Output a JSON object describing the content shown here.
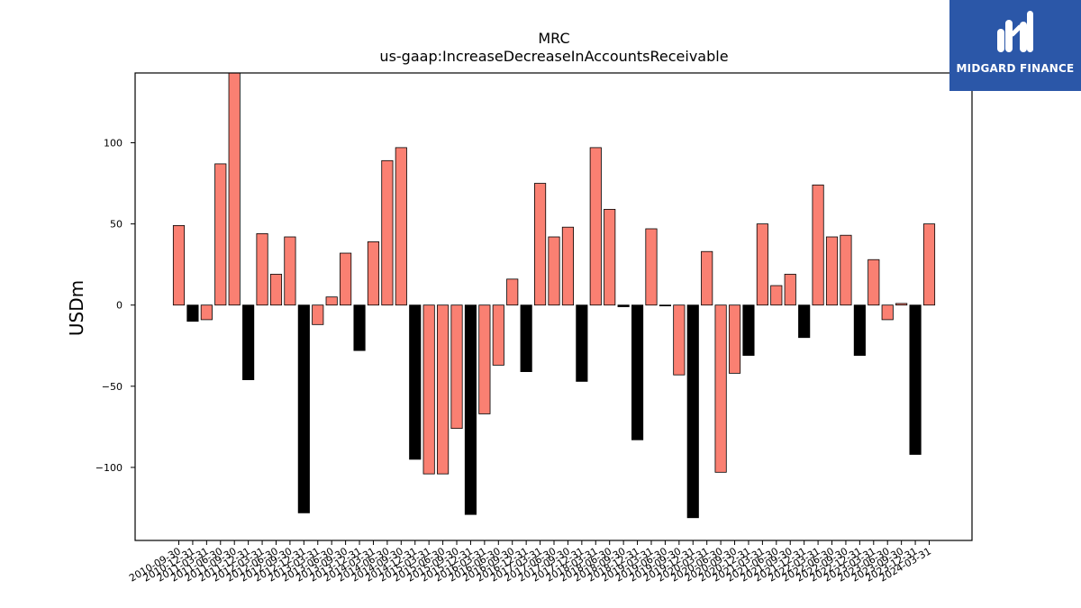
{
  "chart_data": {
    "type": "bar",
    "title": "MRC",
    "subtitle": "us-gaap:IncreaseDecreaseInAccountsReceivable",
    "xlabel": "",
    "ylabel": "USDm",
    "ylim": [
      -145,
      143
    ],
    "yticks": [
      -100,
      -50,
      0,
      50,
      100
    ],
    "grid": false,
    "colors": {
      "positive": "#fa8072",
      "negative": "#000000",
      "edge": "#000000"
    },
    "categories": [
      "2010-09-30",
      "2010-12-31",
      "2011-03-31",
      "2011-06-30",
      "2011-09-30",
      "2011-12-31",
      "2012-03-31",
      "2012-06-30",
      "2012-09-30",
      "2012-12-31",
      "2013-03-31",
      "2013-06-30",
      "2013-09-30",
      "2013-12-31",
      "2014-03-31",
      "2014-06-30",
      "2014-09-30",
      "2014-12-31",
      "2015-03-31",
      "2015-06-30",
      "2015-09-30",
      "2015-12-31",
      "2016-03-31",
      "2016-06-30",
      "2016-09-30",
      "2016-12-31",
      "2017-03-31",
      "2017-06-30",
      "2017-09-30",
      "2017-12-31",
      "2018-03-31",
      "2018-06-30",
      "2018-09-30",
      "2018-12-31",
      "2019-03-31",
      "2019-06-30",
      "2019-09-30",
      "2019-12-31",
      "2020-03-31",
      "2020-06-30",
      "2020-09-30",
      "2020-12-31",
      "2021-03-31",
      "2021-06-30",
      "2021-09-30",
      "2021-12-31",
      "2022-03-31",
      "2022-06-30",
      "2022-09-30",
      "2022-12-31",
      "2023-03-31",
      "2023-06-30",
      "2023-09-30",
      "2023-12-31",
      "2024-03-31"
    ],
    "values": [
      49,
      -10,
      -9,
      87,
      146,
      -46,
      44,
      19,
      42,
      -128,
      -12,
      5,
      32,
      -28,
      39,
      89,
      97,
      -95,
      -104,
      -104,
      -76,
      -129,
      -67,
      -37,
      16,
      -41,
      75,
      42,
      48,
      -47,
      97,
      59,
      -1,
      -83,
      47,
      -0.5,
      -43,
      -131,
      33,
      -103,
      -42,
      -31,
      50,
      12,
      19,
      -20,
      74,
      42,
      43,
      -31,
      28,
      -9,
      1,
      -92,
      50
    ],
    "fills": [
      "pos",
      "neg",
      "pos",
      "pos",
      "pos",
      "neg",
      "pos",
      "pos",
      "pos",
      "neg",
      "pos",
      "pos",
      "pos",
      "neg",
      "pos",
      "pos",
      "pos",
      "neg",
      "pos",
      "pos",
      "pos",
      "neg",
      "pos",
      "pos",
      "pos",
      "neg",
      "pos",
      "pos",
      "pos",
      "neg",
      "pos",
      "pos",
      "neg",
      "neg",
      "pos",
      "neg",
      "pos",
      "neg",
      "pos",
      "pos",
      "pos",
      "neg",
      "pos",
      "pos",
      "pos",
      "neg",
      "pos",
      "pos",
      "pos",
      "neg",
      "pos",
      "pos",
      "pos",
      "neg",
      "pos"
    ]
  },
  "logo": {
    "text": "MIDGARD FINANCE",
    "icon": "midgard-finance-logo-icon",
    "background": "#2b57a8"
  }
}
